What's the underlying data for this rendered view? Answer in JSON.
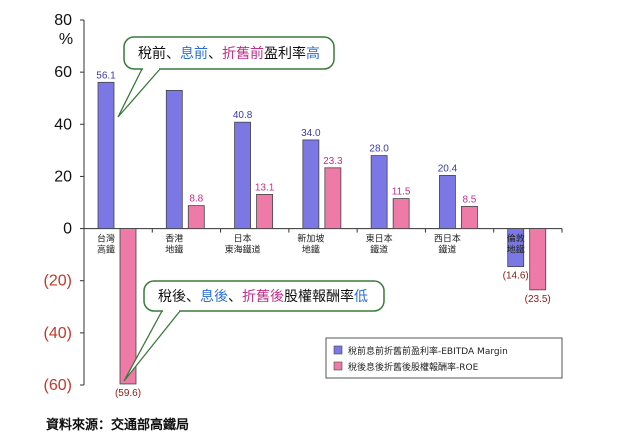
{
  "chart_data": {
    "type": "bar",
    "unit": "%",
    "ylim": [
      -60,
      80
    ],
    "yticks": [
      80,
      60,
      40,
      20,
      0,
      -20,
      -40,
      -60
    ],
    "ytick_labels": [
      "80",
      "60",
      "40",
      "20",
      "0",
      "(20)",
      "(40)",
      "(60)"
    ],
    "categories": [
      [
        "台灣",
        "高鐵"
      ],
      [
        "香港",
        "地鐵"
      ],
      [
        "日本",
        "東海鐵道"
      ],
      [
        "新加坡",
        "地鐵"
      ],
      [
        "東日本",
        "鐵道"
      ],
      [
        "西日本",
        "鐵道"
      ],
      [
        "倫敦",
        "地鐵"
      ]
    ],
    "series": [
      {
        "name": "稅前息前折舊前盈利率-EBITDA Margin",
        "color": "#7b78e6",
        "values": [
          56.1,
          53.0,
          40.8,
          34.0,
          28.0,
          20.4,
          -14.6
        ],
        "labels": [
          "56.1",
          "",
          "40.8",
          "34.0",
          "28.0",
          "20.4",
          "(14.6)"
        ]
      },
      {
        "name": "稅後息後折舊後股權報酬率-ROE",
        "color": "#ee7aa8",
        "values": [
          -59.6,
          8.8,
          13.1,
          23.3,
          11.5,
          8.5,
          -23.5
        ],
        "labels": [
          "(59.6)",
          "8.8",
          "13.1",
          "23.3",
          "11.5",
          "8.5",
          "(23.5)"
        ]
      }
    ],
    "annotations": [
      {
        "segments": [
          {
            "text": "稅前、",
            "color": "#111111"
          },
          {
            "text": "息前",
            "color": "#2b6fd6"
          },
          {
            "text": "、",
            "color": "#111111"
          },
          {
            "text": "折舊前",
            "color": "#c0308a"
          },
          {
            "text": "盈利率",
            "color": "#111111"
          },
          {
            "text": "高",
            "color": "#2b6fd6"
          }
        ]
      },
      {
        "segments": [
          {
            "text": "稅後、",
            "color": "#111111"
          },
          {
            "text": "息後",
            "color": "#2b6fd6"
          },
          {
            "text": "、",
            "color": "#111111"
          },
          {
            "text": "折舊後",
            "color": "#c0308a"
          },
          {
            "text": "股權報酬率",
            "color": "#111111"
          },
          {
            "text": "低",
            "color": "#2b6fd6"
          }
        ]
      }
    ],
    "legend_position": "bottom-right",
    "grid": false
  },
  "source": "資料來源：交通部高鐵局"
}
